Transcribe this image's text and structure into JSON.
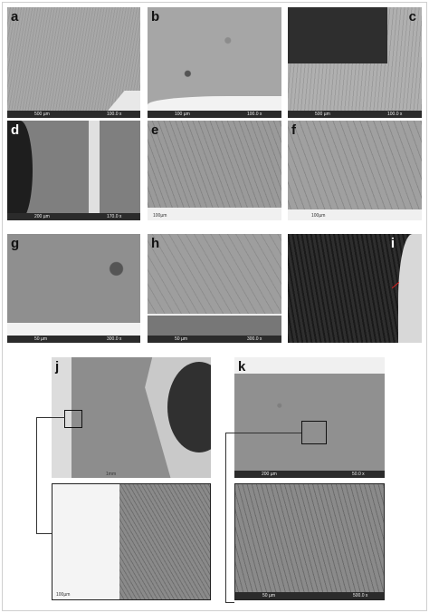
{
  "panels": [
    {
      "label": "a",
      "scale": "500 µm",
      "magnification": "100.0 x"
    },
    {
      "label": "b",
      "scale": "100 µm",
      "magnification": "100.0 x"
    },
    {
      "label": "c",
      "scale": "500 µm",
      "magnification": "100.0 x"
    },
    {
      "label": "d",
      "scale": "200 µm",
      "magnification": "170.0 x"
    },
    {
      "label": "e",
      "scale": "100µm"
    },
    {
      "label": "f",
      "scale": "100µm"
    },
    {
      "label": "g",
      "scale": "50 µm",
      "magnification": "300.0 x"
    },
    {
      "label": "h",
      "scale": "50 µm",
      "magnification": "300.0 x"
    },
    {
      "label": "i"
    },
    {
      "label": "j",
      "scale": "1mm"
    },
    {
      "scale": "100µm"
    },
    {
      "label": "k",
      "scale": "200 µm",
      "magnification": "50.0 x"
    },
    {
      "scale": "50 µm",
      "magnification": "500.0 x"
    }
  ]
}
